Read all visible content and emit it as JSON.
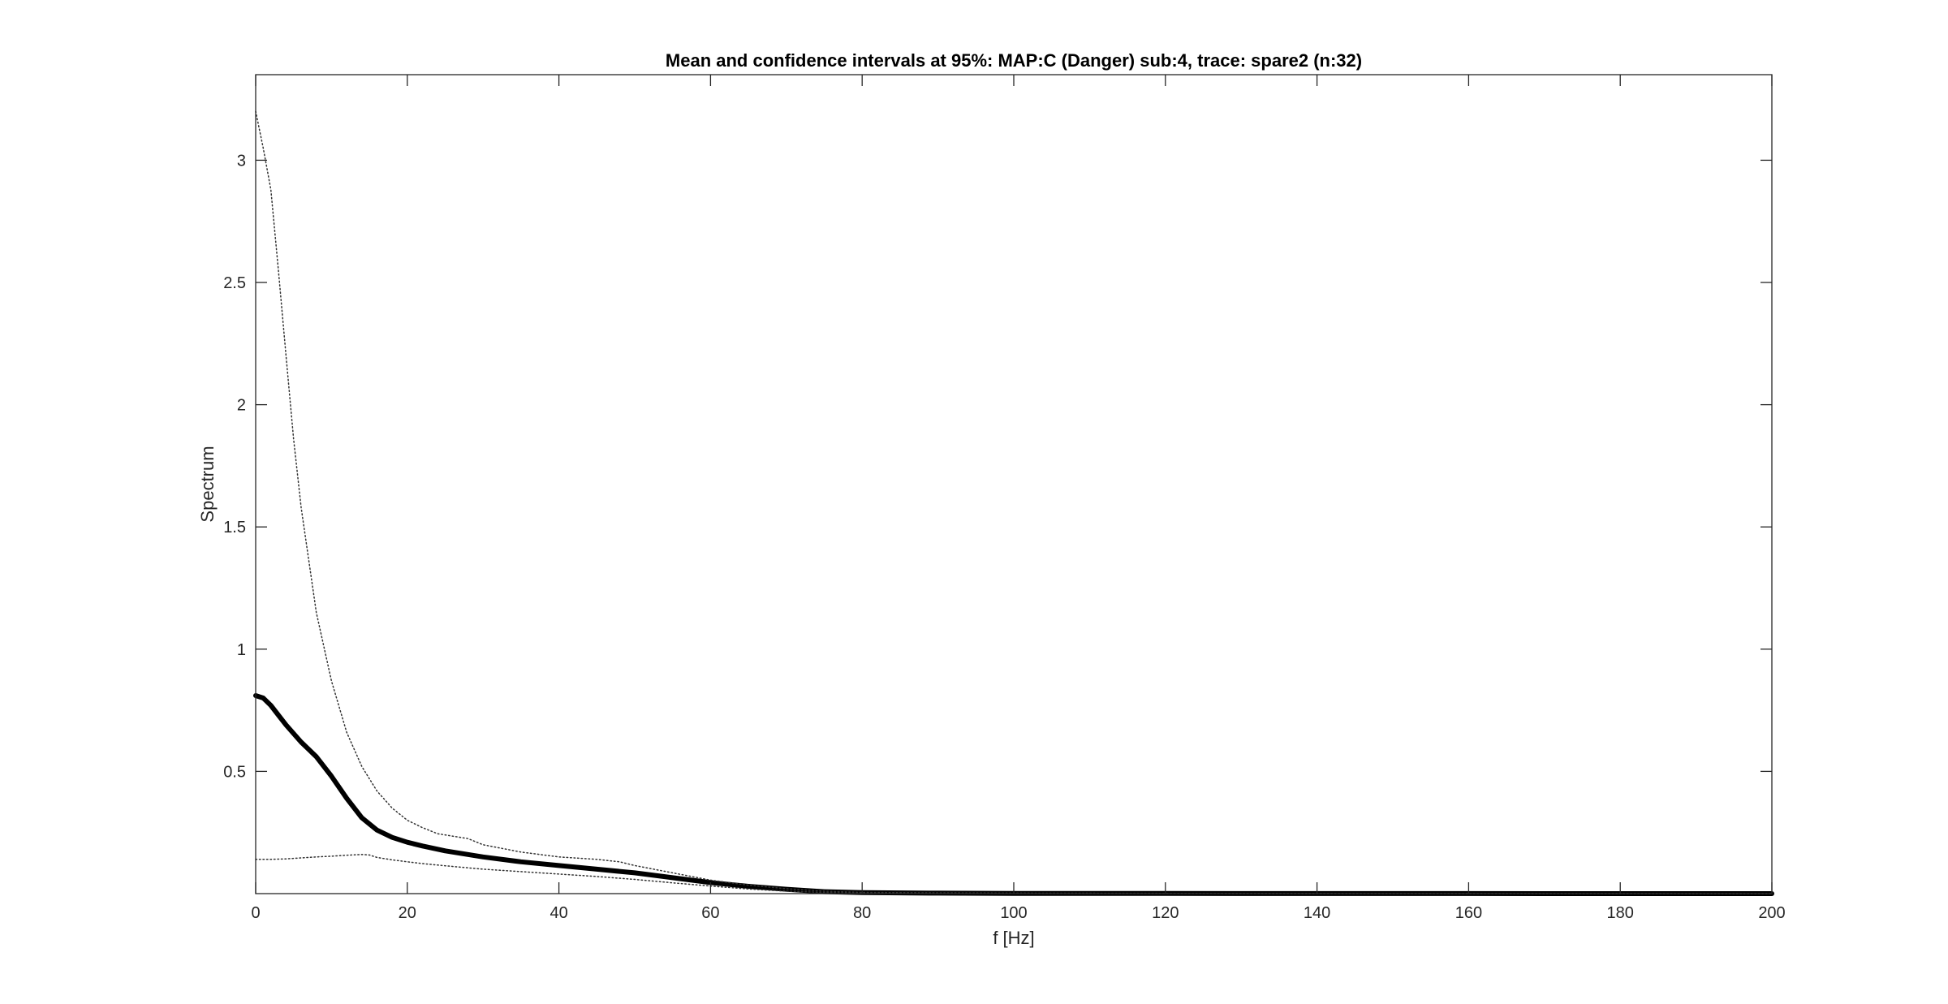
{
  "chart_data": {
    "type": "line",
    "title": "Mean and confidence intervals at 95%: MAP:C (Danger) sub:4, trace: spare2 (n:32)",
    "xlabel": "f [Hz]",
    "ylabel": "Spectrum",
    "xlim": [
      0,
      200
    ],
    "ylim": [
      0,
      3.35
    ],
    "xticks": [
      0,
      20,
      40,
      60,
      80,
      100,
      120,
      140,
      160,
      180,
      200
    ],
    "xtick_labels": [
      "0",
      "20",
      "40",
      "60",
      "80",
      "100",
      "120",
      "140",
      "160",
      "180",
      "200"
    ],
    "yticks": [
      0.5,
      1,
      1.5,
      2,
      2.5,
      3
    ],
    "ytick_labels": [
      "0.5",
      "1",
      "1.5",
      "2",
      "2.5",
      "3"
    ],
    "grid": false,
    "legend": "none",
    "series": [
      {
        "role": "mean",
        "style": "solid-thick",
        "x": [
          0,
          1,
          2,
          3,
          4,
          6,
          8,
          10,
          12,
          14,
          16,
          18,
          20,
          22,
          25,
          30,
          35,
          40,
          45,
          50,
          55,
          60,
          65,
          70,
          75,
          80,
          90,
          100,
          120,
          140,
          160,
          180,
          200
        ],
        "y": [
          0.81,
          0.8,
          0.77,
          0.73,
          0.69,
          0.62,
          0.56,
          0.48,
          0.39,
          0.31,
          0.26,
          0.23,
          0.21,
          0.195,
          0.175,
          0.15,
          0.13,
          0.115,
          0.1,
          0.085,
          0.065,
          0.045,
          0.03,
          0.018,
          0.008,
          0.004,
          0.002,
          0.001,
          0.0005,
          0.0003,
          0.0002,
          0.0001,
          0.0001
        ]
      },
      {
        "role": "upper-95",
        "style": "dotted",
        "x": [
          0,
          1,
          2,
          3,
          4,
          5,
          6,
          8,
          10,
          12,
          14,
          16,
          18,
          20,
          22,
          24,
          26,
          28,
          30,
          35,
          40,
          45,
          48,
          50,
          55,
          60,
          65,
          70,
          75,
          80,
          90,
          100,
          120,
          140,
          160,
          180,
          200
        ],
        "y": [
          3.2,
          3.05,
          2.88,
          2.55,
          2.2,
          1.86,
          1.58,
          1.15,
          0.87,
          0.66,
          0.52,
          0.42,
          0.35,
          0.3,
          0.27,
          0.245,
          0.235,
          0.225,
          0.2,
          0.17,
          0.15,
          0.14,
          0.13,
          0.115,
          0.085,
          0.055,
          0.035,
          0.02,
          0.01,
          0.005,
          0.003,
          0.002,
          0.001,
          0.0005,
          0.0003,
          0.0002,
          0.0001
        ]
      },
      {
        "role": "lower-95",
        "style": "dotted",
        "x": [
          0,
          2,
          4,
          6,
          8,
          10,
          12,
          14,
          15,
          16,
          18,
          20,
          22,
          25,
          30,
          35,
          40,
          45,
          50,
          55,
          60,
          65,
          70,
          75,
          80,
          90,
          100,
          120,
          140,
          160,
          180,
          200
        ],
        "y": [
          0.14,
          0.14,
          0.142,
          0.146,
          0.15,
          0.153,
          0.157,
          0.16,
          0.158,
          0.148,
          0.138,
          0.13,
          0.123,
          0.114,
          0.1,
          0.09,
          0.08,
          0.07,
          0.058,
          0.044,
          0.031,
          0.019,
          0.01,
          0.005,
          0.002,
          0.001,
          0.0005,
          0.0002,
          0.0001,
          0.0001,
          0.0001,
          0.0001
        ]
      }
    ]
  }
}
